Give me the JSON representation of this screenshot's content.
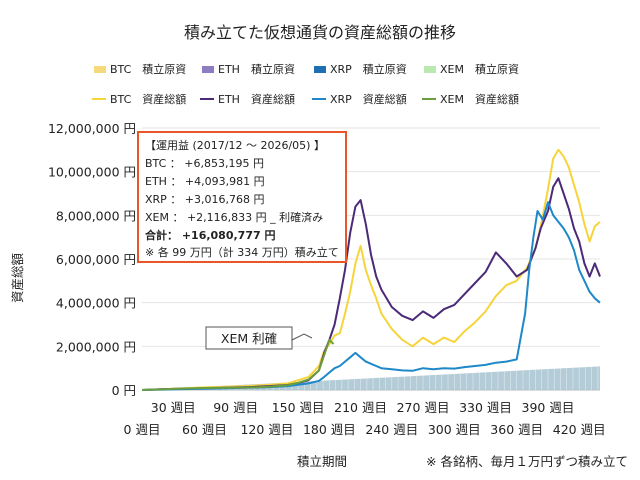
{
  "chart_data": {
    "type": "line",
    "title": "積み立てた仮想通貨の資産総額の推移",
    "xlabel": "積立期間",
    "ylabel": "資産総額",
    "x_ticks_upper": [
      "30 週目",
      "90 週目",
      "150 週目",
      "210 週目",
      "270 週目",
      "330 週目",
      "390 週目"
    ],
    "x_ticks_lower": [
      "0 週目",
      "60 週目",
      "120 週目",
      "180 週目",
      "240 週目",
      "300 週目",
      "360 週目",
      "420 週目"
    ],
    "y_ticks": [
      "0 円",
      "2,000,000 円",
      "4,000,000 円",
      "6,000,000 円",
      "8,000,000 円",
      "10,000,000 円",
      "12,000,000 円"
    ],
    "xlim": [
      0,
      440
    ],
    "ylim": [
      0,
      12000000
    ],
    "grid": true,
    "legend_placement": "top",
    "legend": [
      {
        "label": "BTC　積立原資",
        "kind": "area",
        "color": "#f5d97a"
      },
      {
        "label": "ETH　積立原資",
        "kind": "area",
        "color": "#8e7cc3"
      },
      {
        "label": "XRP　積立原資",
        "kind": "area",
        "color": "#1f6fb5"
      },
      {
        "label": "XEM　積立原資",
        "kind": "area",
        "color": "#b9e8b0"
      },
      {
        "label": "BTC　資産総額",
        "kind": "line",
        "color": "#f7d43c"
      },
      {
        "label": "ETH　資産総額",
        "kind": "line",
        "color": "#4b2a78"
      },
      {
        "label": "XRP　資産総額",
        "kind": "line",
        "color": "#1e88c8"
      },
      {
        "label": "XEM　資産総額",
        "kind": "line",
        "color": "#6a9e3f"
      }
    ],
    "contribution_total": {
      "x": [
        0,
        440
      ],
      "y": [
        0,
        1080000
      ],
      "color": "#a7c3d0"
    },
    "series": [
      {
        "name": "BTC　資産総額",
        "color": "#f7d43c",
        "x": [
          0,
          20,
          40,
          60,
          80,
          100,
          120,
          140,
          150,
          160,
          170,
          175,
          180,
          185,
          190,
          195,
          200,
          205,
          210,
          215,
          220,
          225,
          230,
          240,
          250,
          260,
          270,
          280,
          290,
          300,
          310,
          320,
          330,
          340,
          350,
          360,
          370,
          378,
          383,
          390,
          395,
          400,
          405,
          410,
          415,
          420,
          425,
          430,
          435,
          440
        ],
        "y": [
          0,
          30000,
          80000,
          120000,
          150000,
          180000,
          230000,
          300000,
          450000,
          600000,
          1100000,
          1800000,
          2100000,
          2500000,
          2600000,
          3500000,
          4500000,
          5800000,
          6600000,
          5500000,
          4800000,
          4200000,
          3500000,
          2800000,
          2300000,
          2000000,
          2400000,
          2100000,
          2400000,
          2200000,
          2700000,
          3100000,
          3600000,
          4300000,
          4800000,
          5000000,
          5600000,
          6500000,
          7500000,
          9200000,
          10600000,
          11000000,
          10700000,
          10200000,
          9400000,
          8600000,
          7600000,
          6800000,
          7500000,
          7700000
        ]
      },
      {
        "name": "ETH　資産総額",
        "color": "#4b2a78",
        "x": [
          0,
          20,
          40,
          60,
          80,
          100,
          120,
          140,
          150,
          160,
          170,
          175,
          180,
          185,
          190,
          195,
          200,
          205,
          210,
          215,
          220,
          225,
          230,
          240,
          250,
          260,
          270,
          280,
          290,
          300,
          310,
          320,
          330,
          340,
          350,
          360,
          370,
          378,
          383,
          390,
          395,
          400,
          405,
          410,
          415,
          420,
          425,
          430,
          435,
          440
        ],
        "y": [
          0,
          40000,
          60000,
          80000,
          100000,
          130000,
          170000,
          230000,
          320000,
          450000,
          900000,
          1700000,
          2300000,
          3000000,
          4200000,
          5500000,
          7200000,
          8400000,
          8700000,
          7600000,
          6200000,
          5200000,
          4600000,
          3800000,
          3400000,
          3200000,
          3600000,
          3300000,
          3700000,
          3900000,
          4400000,
          4900000,
          5400000,
          6300000,
          5800000,
          5200000,
          5500000,
          6500000,
          7400000,
          8200000,
          9300000,
          9700000,
          9000000,
          8300000,
          7400000,
          6800000,
          5800000,
          5200000,
          5800000,
          5200000
        ]
      },
      {
        "name": "XRP　資産総額",
        "color": "#1e88c8",
        "x": [
          0,
          20,
          40,
          60,
          80,
          100,
          120,
          140,
          150,
          160,
          170,
          175,
          180,
          185,
          190,
          195,
          200,
          205,
          210,
          215,
          220,
          225,
          230,
          240,
          250,
          260,
          270,
          280,
          290,
          300,
          310,
          320,
          330,
          340,
          350,
          360,
          368,
          372,
          376,
          380,
          385,
          390,
          395,
          400,
          405,
          410,
          415,
          420,
          425,
          430,
          435,
          440
        ],
        "y": [
          0,
          20000,
          40000,
          60000,
          80000,
          100000,
          130000,
          180000,
          240000,
          300000,
          420000,
          600000,
          800000,
          1000000,
          1100000,
          1300000,
          1500000,
          1700000,
          1500000,
          1300000,
          1200000,
          1100000,
          1000000,
          950000,
          900000,
          880000,
          1000000,
          950000,
          1000000,
          980000,
          1050000,
          1100000,
          1150000,
          1250000,
          1300000,
          1400000,
          3500000,
          5500000,
          7000000,
          8200000,
          7800000,
          8600000,
          8000000,
          7700000,
          7400000,
          7000000,
          6400000,
          5500000,
          5000000,
          4500000,
          4200000,
          4000000
        ]
      },
      {
        "name": "XEM　資産総額",
        "color": "#6a9e3f",
        "x": [
          0,
          20,
          40,
          60,
          80,
          100,
          120,
          140,
          150,
          160,
          170,
          175,
          180,
          184
        ],
        "y": [
          0,
          35000,
          70000,
          90000,
          100000,
          110000,
          140000,
          220000,
          330000,
          480000,
          900000,
          1600000,
          2300000,
          2100000
        ]
      }
    ]
  },
  "annotation_box": {
    "title": "【運用益 (2017/12 〜 2026/05) 】",
    "btc": "BTC ： +6,853,195 円",
    "eth": "ETH ： +4,093,981 円",
    "xrp": "XRP ： +3,016,768 円",
    "xem": "XEM ： +2,116,833 円 _ 利確済み",
    "total": "合計： +16,080,777 円",
    "note": "※ 各 99 万円（計 334 万円）積み立て"
  },
  "callout": "XEM 利確",
  "footnote": "※ 各銘柄、毎月１万円ずつ積み立て"
}
